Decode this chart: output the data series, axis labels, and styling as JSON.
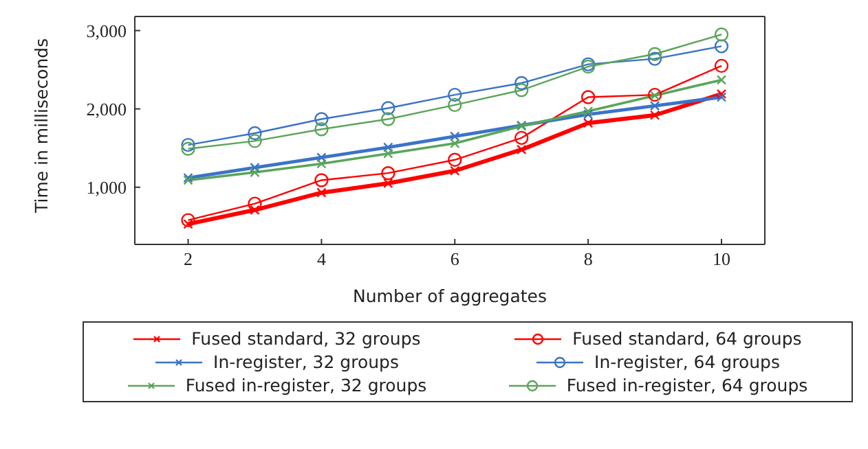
{
  "chart_data": {
    "type": "line",
    "xlabel": "Number of aggregates",
    "ylabel": "Time in milliseconds",
    "x": [
      2,
      3,
      4,
      5,
      6,
      7,
      8,
      9,
      10
    ],
    "xlim": [
      1.2,
      10.65
    ],
    "xticks": [
      2,
      4,
      6,
      8,
      10
    ],
    "ylim": [
      270,
      3180
    ],
    "yticks": [
      {
        "value": 1000,
        "label": "1,000"
      },
      {
        "value": 2000,
        "label": "2,000"
      },
      {
        "value": 3000,
        "label": "3,000"
      }
    ],
    "grid": false,
    "legend": "bottom",
    "series": [
      {
        "name": "Fused standard, 32 groups",
        "color": "#ff0000",
        "marker": "cross",
        "values": [
          530,
          710,
          930,
          1050,
          1210,
          1480,
          1820,
          1920,
          2190
        ]
      },
      {
        "name": "Fused standard, 64 groups",
        "color": "#ff0000",
        "marker": "circle",
        "values": [
          580,
          790,
          1090,
          1180,
          1350,
          1630,
          2150,
          2180,
          2550
        ]
      },
      {
        "name": "In-register, 32 groups",
        "color": "#3b73c8",
        "marker": "cross",
        "values": [
          1120,
          1250,
          1380,
          1510,
          1650,
          1790,
          1930,
          2040,
          2150
        ]
      },
      {
        "name": "In-register, 64 groups",
        "color": "#3b73c8",
        "marker": "circle",
        "values": [
          1540,
          1690,
          1870,
          2010,
          2180,
          2330,
          2570,
          2640,
          2800
        ]
      },
      {
        "name": "Fused in-register, 32 groups",
        "color": "#5aa55a",
        "marker": "cross",
        "values": [
          1090,
          1190,
          1300,
          1430,
          1560,
          1780,
          1970,
          2170,
          2370
        ]
      },
      {
        "name": "Fused in-register, 64 groups",
        "color": "#5aa55a",
        "marker": "circle",
        "values": [
          1490,
          1590,
          1740,
          1870,
          2050,
          2240,
          2540,
          2700,
          2950
        ]
      }
    ]
  }
}
